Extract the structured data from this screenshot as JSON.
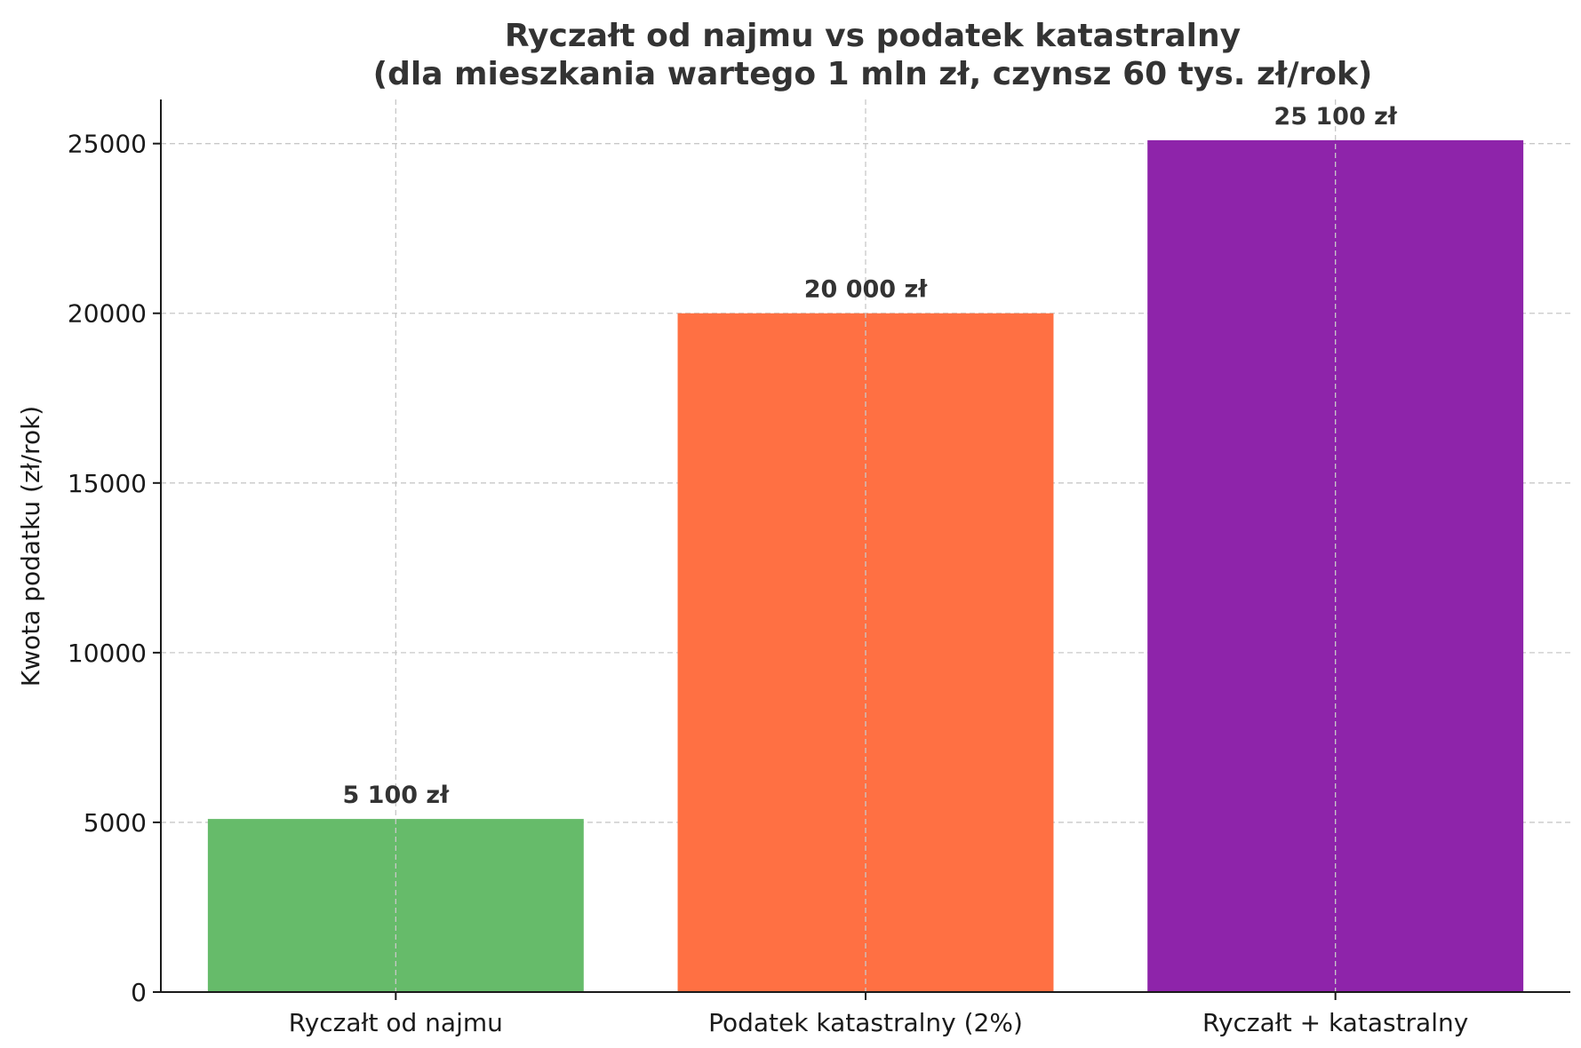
{
  "chart_data": {
    "type": "bar",
    "title": "Ryczałt od najmu vs podatek katastralny\n(dla mieszkania wartego 1 mln zł, czynsz 60 tys. zł/rok)",
    "title_lines": [
      "Ryczałt od najmu vs podatek katastralny",
      "(dla mieszkania wartego 1 mln zł, czynsz 60 tys. zł/rok)"
    ],
    "xlabel": "",
    "ylabel": "Kwota podatku (zł/rok)",
    "categories": [
      "Ryczałt od najmu",
      "Podatek katastralny (2%)",
      "Ryczałt + katastralny"
    ],
    "values": [
      5100,
      20000,
      25100
    ],
    "data_labels": [
      "5 100 zł",
      "20 000 zł",
      "25 100 zł"
    ],
    "colors": [
      "#66bb6a",
      "#ff7043",
      "#8e24aa"
    ],
    "ylim": [
      0,
      26300
    ],
    "yticks": [
      0,
      5000,
      10000,
      15000,
      20000,
      25000
    ],
    "ytick_labels": [
      "0",
      "5000",
      "10000",
      "15000",
      "20000",
      "25000"
    ],
    "grid": true,
    "legend": "none"
  }
}
